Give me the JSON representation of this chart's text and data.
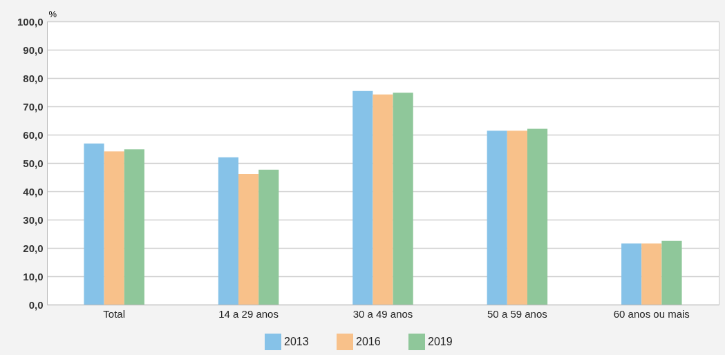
{
  "chart_data": {
    "type": "bar",
    "ylabel": "%",
    "categories": [
      "Total",
      "14 a 29 anos",
      "30 a 49 anos",
      "50 a 59 anos",
      "60 anos ou mais"
    ],
    "series": [
      {
        "name": "2013",
        "color": "#86c2e8",
        "values": [
          56.9,
          52.0,
          75.4,
          61.4,
          21.6
        ]
      },
      {
        "name": "2016",
        "color": "#f8c18a",
        "values": [
          54.1,
          46.1,
          74.2,
          61.4,
          21.6
        ]
      },
      {
        "name": "2019",
        "color": "#8fc79a",
        "values": [
          54.8,
          47.6,
          74.8,
          62.1,
          22.5
        ]
      }
    ],
    "ylim": [
      0,
      100
    ],
    "yticks": [
      {
        "value": 0,
        "label": "0,0"
      },
      {
        "value": 10,
        "label": "10,0"
      },
      {
        "value": 20,
        "label": "20,0"
      },
      {
        "value": 30,
        "label": "30,0"
      },
      {
        "value": 40,
        "label": "40,0"
      },
      {
        "value": 50,
        "label": "50,0"
      },
      {
        "value": 60,
        "label": "60,0"
      },
      {
        "value": 70,
        "label": "70,0"
      },
      {
        "value": 80,
        "label": "80,0"
      },
      {
        "value": 90,
        "label": "90,0"
      },
      {
        "value": 100,
        "label": "100,0"
      }
    ],
    "grid": "y",
    "legend": "bottom"
  }
}
